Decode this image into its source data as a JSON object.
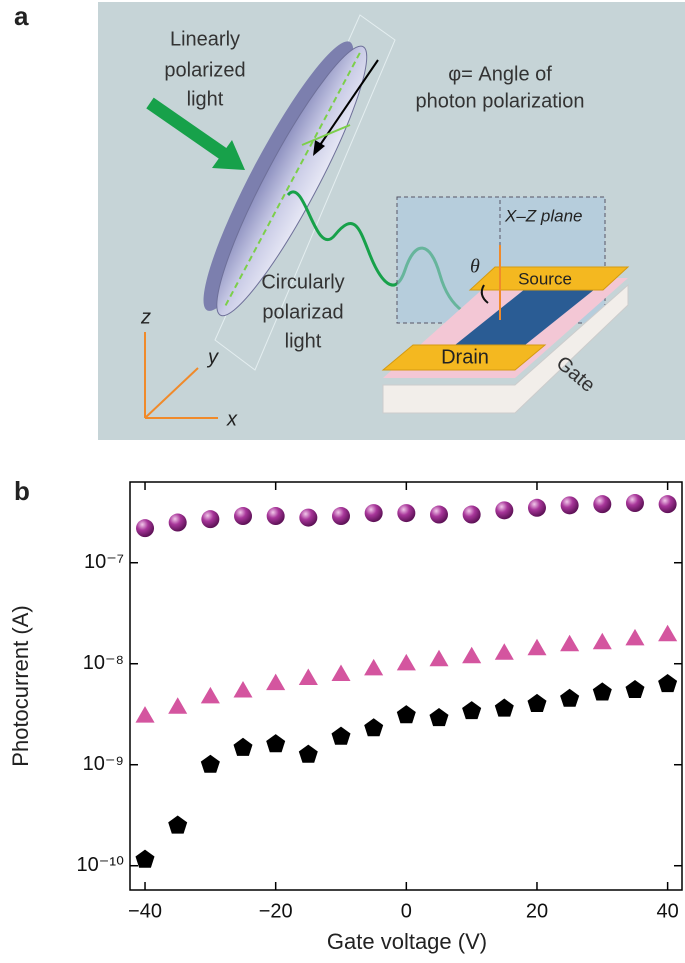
{
  "panel_labels": [
    "a",
    "b"
  ],
  "diagram": {
    "incident_light": [
      "Linearly",
      "polarized",
      "light"
    ],
    "angle_note": [
      "φ= Angle of",
      "photon polarization"
    ],
    "plane": "X–Z plane",
    "theta": "θ",
    "source": "Source",
    "output_light": [
      "Circularly",
      "polarizad",
      "light"
    ],
    "drain": "Drain",
    "gate": "Gate",
    "axes": {
      "z": "z",
      "y": "y",
      "x": "x"
    }
  },
  "chart_data": {
    "type": "scatter",
    "x_label": "Gate voltage (V)",
    "y_label": "Photocurrent (A)",
    "y_log": true,
    "x": [
      -40,
      -35,
      -30,
      -25,
      -20,
      -15,
      -10,
      -5,
      0,
      5,
      10,
      15,
      20,
      25,
      30,
      35,
      40
    ],
    "series": [
      {
        "marker": "circle",
        "color": "#9b2a8e",
        "values": [
          2.2e-07,
          2.5e-07,
          2.7e-07,
          2.9e-07,
          2.9e-07,
          2.8e-07,
          2.9e-07,
          3.1e-07,
          3.1e-07,
          3e-07,
          3e-07,
          3.3e-07,
          3.5e-07,
          3.7e-07,
          3.8e-07,
          3.9e-07,
          3.8e-07
        ]
      },
      {
        "marker": "triangle",
        "color": "#d4559f",
        "values": [
          3.1e-09,
          3.8e-09,
          4.8e-09,
          5.5e-09,
          6.5e-09,
          7.3e-09,
          8e-09,
          9.1e-09,
          1.02e-08,
          1.12e-08,
          1.2e-08,
          1.3e-08,
          1.44e-08,
          1.58e-08,
          1.65e-08,
          1.8e-08,
          1.98e-08
        ]
      },
      {
        "marker": "pentagon",
        "color": "#000000",
        "values": [
          1.15e-10,
          2.5e-10,
          1e-09,
          1.47e-09,
          1.6e-09,
          1.26e-09,
          1.9e-09,
          2.3e-09,
          3.1e-09,
          2.9e-09,
          3.4e-09,
          3.6e-09,
          4e-09,
          4.5e-09,
          5.2e-09,
          5.5e-09,
          6.3e-09
        ]
      }
    ],
    "xlim": [
      -42.3,
      42.2
    ],
    "ylim": [
      5.75e-11,
      6.3e-07
    ],
    "xticks": [
      {
        "value": -40,
        "label": "−40"
      },
      {
        "value": -20,
        "label": "−20"
      },
      0,
      20,
      40
    ],
    "yticks": [
      {
        "value": 1e-10,
        "label": "10⁻¹⁰"
      },
      {
        "value": 1e-09,
        "label": "10⁻⁹"
      },
      {
        "value": 1e-08,
        "label": "10⁻⁸"
      },
      {
        "value": 1e-07,
        "label": "10⁻⁷"
      }
    ]
  }
}
